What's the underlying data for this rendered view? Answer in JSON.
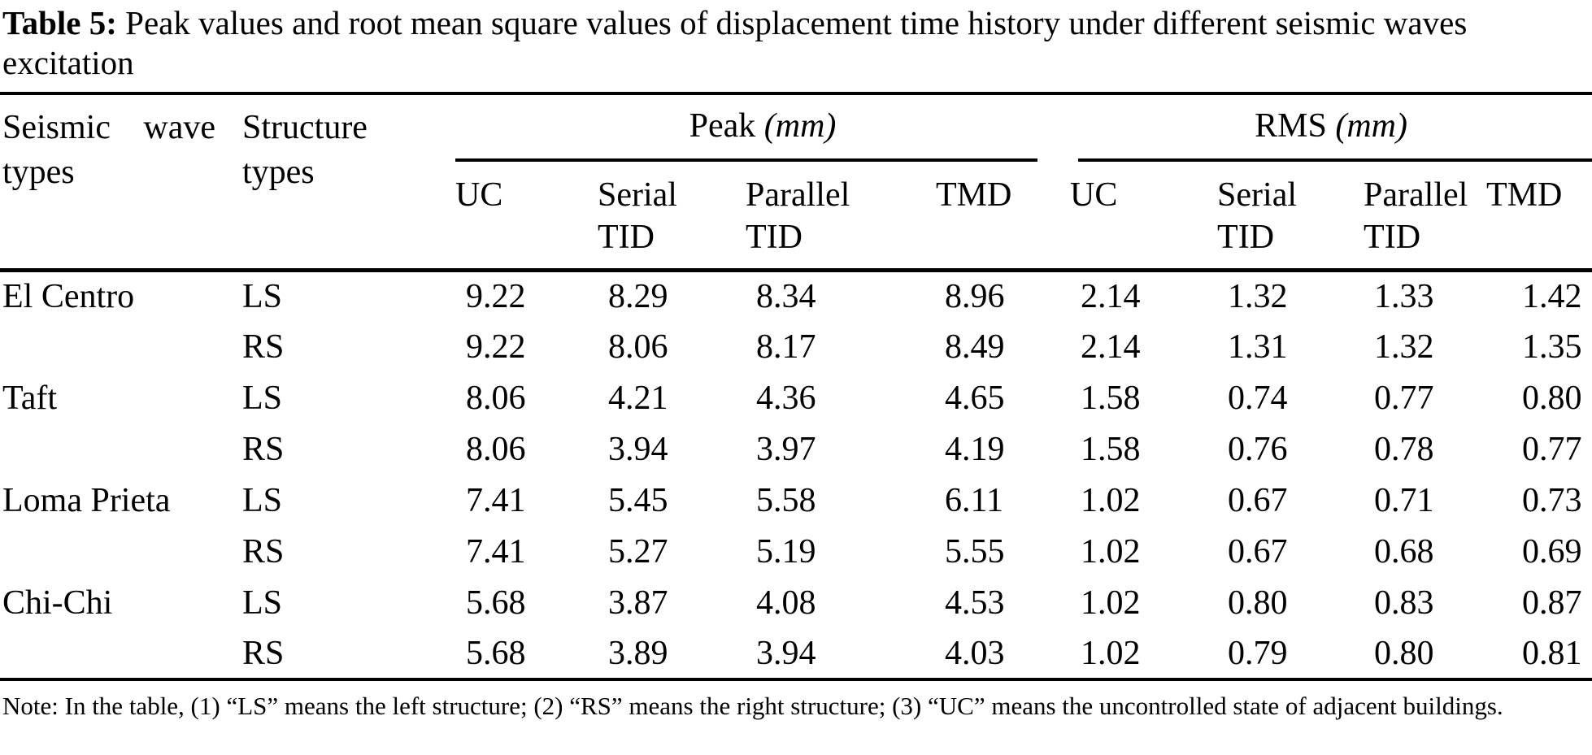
{
  "caption": {
    "label": "Table 5:",
    "text": "Peak values and root mean square values of displacement time history under different seismic waves excitation"
  },
  "table": {
    "col1_header": "Seismic wave types",
    "col2_header": "Structure types",
    "groups": [
      {
        "label": "Peak",
        "unit": "(mm)"
      },
      {
        "label": "RMS",
        "unit": "(mm)"
      }
    ],
    "subheaders": [
      "UC",
      "Serial TID",
      "Parallel TID",
      "TMD",
      "UC",
      "Serial TID",
      "Parallel TID",
      "TMD"
    ],
    "rows": [
      {
        "wave": "El Centro",
        "structure": "LS",
        "values": [
          "9.22",
          "8.29",
          "8.34",
          "8.96",
          "2.14",
          "1.32",
          "1.33",
          "1.42"
        ]
      },
      {
        "wave": "",
        "structure": "RS",
        "values": [
          "9.22",
          "8.06",
          "8.17",
          "8.49",
          "2.14",
          "1.31",
          "1.32",
          "1.35"
        ]
      },
      {
        "wave": "Taft",
        "structure": "LS",
        "values": [
          "8.06",
          "4.21",
          "4.36",
          "4.65",
          "1.58",
          "0.74",
          "0.77",
          "0.80"
        ]
      },
      {
        "wave": "",
        "structure": "RS",
        "values": [
          "8.06",
          "3.94",
          "3.97",
          "4.19",
          "1.58",
          "0.76",
          "0.78",
          "0.77"
        ]
      },
      {
        "wave": "Loma Prieta",
        "structure": "LS",
        "values": [
          "7.41",
          "5.45",
          "5.58",
          "6.11",
          "1.02",
          "0.67",
          "0.71",
          "0.73"
        ]
      },
      {
        "wave": "",
        "structure": "RS",
        "values": [
          "7.41",
          "5.27",
          "5.19",
          "5.55",
          "1.02",
          "0.67",
          "0.68",
          "0.69"
        ]
      },
      {
        "wave": "Chi-Chi",
        "structure": "LS",
        "values": [
          "5.68",
          "3.87",
          "4.08",
          "4.53",
          "1.02",
          "0.80",
          "0.83",
          "0.87"
        ]
      },
      {
        "wave": "",
        "structure": "RS",
        "values": [
          "5.68",
          "3.89",
          "3.94",
          "4.03",
          "1.02",
          "0.79",
          "0.80",
          "0.81"
        ]
      }
    ]
  },
  "note": "Note: In the table, (1) “LS” means the left structure; (2) “RS” means the right structure; (3) “UC” means the uncontrolled state of adjacent buildings."
}
